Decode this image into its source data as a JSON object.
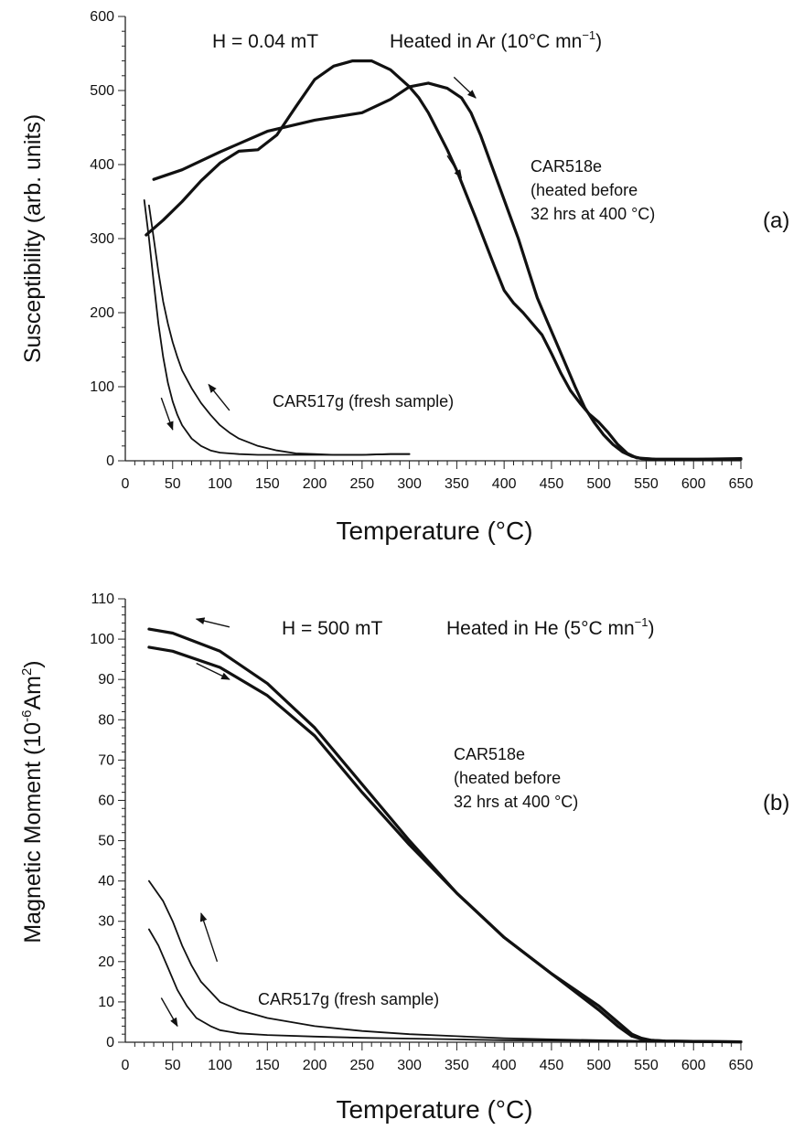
{
  "chart_data": [
    {
      "type": "line",
      "panel": "(a)",
      "header": {
        "field": "H = 0.04 mT",
        "condition": "Heated in Ar (10°C mn",
        "condition_sup": "−1",
        "condition_close": ")"
      },
      "ylabel": "Susceptibility (arb. units)",
      "xlabel": "Temperature (°C)",
      "xlim": [
        0,
        650
      ],
      "ylim": [
        0,
        600
      ],
      "xticks": [
        0,
        50,
        100,
        150,
        200,
        250,
        300,
        350,
        400,
        450,
        500,
        550,
        600,
        650
      ],
      "yticks": [
        0,
        100,
        200,
        300,
        400,
        500,
        600
      ],
      "annotations": {
        "sample_b": [
          "CAR518e",
          "(heated before",
          "32 hrs at 400 °C)"
        ],
        "sample_a": "CAR517g (fresh sample)"
      },
      "series": [
        {
          "style": "thick",
          "x": [
            22,
            40,
            60,
            80,
            100,
            120,
            140,
            160,
            180,
            200,
            220,
            240,
            260,
            280,
            300,
            310,
            320,
            330,
            340,
            350,
            360,
            370,
            380,
            390,
            400,
            410,
            420,
            430,
            440,
            450,
            460,
            470,
            480,
            490,
            500,
            510,
            520,
            530,
            540,
            560,
            600,
            650
          ],
          "y": [
            305,
            325,
            350,
            378,
            402,
            418,
            420,
            440,
            478,
            515,
            533,
            540,
            540,
            528,
            505,
            490,
            470,
            445,
            420,
            392,
            360,
            328,
            295,
            262,
            230,
            213,
            200,
            185,
            170,
            145,
            118,
            95,
            78,
            63,
            52,
            38,
            22,
            10,
            4,
            2,
            2,
            3
          ]
        },
        {
          "style": "thick",
          "x": [
            30,
            60,
            100,
            150,
            200,
            250,
            280,
            300,
            320,
            340,
            355,
            365,
            375,
            385,
            395,
            405,
            415,
            425,
            435,
            445,
            455,
            465,
            475,
            485,
            495,
            505,
            515,
            525,
            535,
            545,
            560,
            600,
            650
          ],
          "y": [
            380,
            393,
            417,
            445,
            460,
            470,
            488,
            505,
            510,
            503,
            490,
            470,
            440,
            405,
            370,
            335,
            300,
            260,
            220,
            190,
            160,
            130,
            100,
            72,
            52,
            35,
            22,
            12,
            6,
            3,
            2,
            2,
            2
          ]
        },
        {
          "style": "thin",
          "x": [
            20,
            25,
            30,
            35,
            40,
            45,
            50,
            55,
            60,
            70,
            80,
            90,
            100,
            120,
            140,
            160,
            180,
            200,
            220,
            250,
            280,
            300
          ],
          "y": [
            352,
            300,
            240,
            185,
            140,
            105,
            80,
            62,
            48,
            30,
            20,
            14,
            11,
            9,
            8,
            8,
            8,
            8,
            8,
            8,
            9,
            9
          ]
        },
        {
          "style": "thin",
          "x": [
            25,
            30,
            35,
            40,
            45,
            50,
            55,
            60,
            70,
            80,
            90,
            100,
            110,
            120,
            140,
            160,
            180,
            200,
            220,
            250,
            280,
            300
          ],
          "y": [
            345,
            300,
            255,
            215,
            185,
            160,
            140,
            122,
            98,
            78,
            62,
            48,
            38,
            30,
            20,
            14,
            10,
            9,
            8,
            8,
            9,
            9
          ]
        }
      ],
      "arrows": [
        {
          "from": [
            347,
            518
          ],
          "to": [
            370,
            490
          ]
        },
        {
          "from": [
            340,
            412
          ],
          "to": [
            355,
            382
          ]
        },
        {
          "from": [
            38,
            85
          ],
          "to": [
            50,
            42
          ]
        },
        {
          "from": [
            110,
            68
          ],
          "to": [
            88,
            103
          ]
        }
      ]
    },
    {
      "type": "line",
      "panel": "(b)",
      "header": {
        "field": "H = 500 mT",
        "condition": "Heated in He (5°C mn",
        "condition_sup": "−1",
        "condition_close": ")"
      },
      "ylabel_main": "Magnetic Moment (10",
      "ylabel_sup": "-6",
      "ylabel_tail": "Am",
      "ylabel_sup2": "2",
      "ylabel_close": ")",
      "xlabel": "Temperature (°C)",
      "xlim": [
        0,
        650
      ],
      "ylim": [
        0,
        110
      ],
      "xticks": [
        0,
        50,
        100,
        150,
        200,
        250,
        300,
        350,
        400,
        450,
        500,
        550,
        600,
        650
      ],
      "yticks": [
        0,
        10,
        20,
        30,
        40,
        50,
        60,
        70,
        80,
        90,
        100,
        110
      ],
      "annotations": {
        "sample_b": [
          "CAR518e",
          "(heated before",
          "32 hrs at 400 °C)"
        ],
        "sample_a": "CAR517g (fresh sample)"
      },
      "series": [
        {
          "style": "thick",
          "x": [
            25,
            50,
            100,
            150,
            200,
            250,
            300,
            350,
            400,
            450,
            500,
            520,
            535,
            545,
            555,
            570,
            600,
            650
          ],
          "y": [
            102.5,
            101.5,
            97,
            89,
            78,
            64,
            50,
            37,
            26,
            17,
            9,
            5,
            2,
            1,
            0.5,
            0.3,
            0.2,
            0.1
          ]
        },
        {
          "style": "thick",
          "x": [
            25,
            50,
            100,
            150,
            200,
            250,
            300,
            350,
            400,
            450,
            500,
            520,
            535,
            545,
            555,
            570,
            600,
            650
          ],
          "y": [
            98,
            97,
            93,
            86,
            76,
            62,
            49,
            37,
            26,
            17,
            8,
            4,
            1.5,
            0.8,
            0.5,
            0.3,
            0.2,
            0.1
          ]
        },
        {
          "style": "thin",
          "x": [
            25,
            40,
            50,
            60,
            70,
            80,
            90,
            100,
            120,
            150,
            200,
            250,
            300,
            350,
            400,
            450,
            500,
            550,
            600,
            650
          ],
          "y": [
            40,
            35,
            30,
            24,
            19,
            15,
            12.5,
            10,
            8,
            6,
            4,
            2.8,
            2,
            1.5,
            1,
            0.7,
            0.5,
            0.3,
            0.2,
            0.1
          ]
        },
        {
          "style": "thin",
          "x": [
            25,
            35,
            45,
            55,
            65,
            75,
            90,
            100,
            120,
            150,
            200,
            250,
            300,
            350,
            400,
            450,
            500,
            550,
            600,
            650
          ],
          "y": [
            28,
            24,
            18.5,
            13,
            9,
            6,
            4,
            3,
            2.2,
            1.8,
            1.4,
            1.1,
            0.9,
            0.7,
            0.5,
            0.4,
            0.3,
            0.2,
            0.1,
            0.1
          ]
        }
      ],
      "arrows": [
        {
          "from": [
            110,
            103
          ],
          "to": [
            75,
            105
          ]
        },
        {
          "from": [
            75,
            94
          ],
          "to": [
            110,
            90
          ]
        },
        {
          "from": [
            97,
            20
          ],
          "to": [
            80,
            32
          ]
        },
        {
          "from": [
            38,
            11
          ],
          "to": [
            55,
            4
          ]
        }
      ]
    }
  ]
}
